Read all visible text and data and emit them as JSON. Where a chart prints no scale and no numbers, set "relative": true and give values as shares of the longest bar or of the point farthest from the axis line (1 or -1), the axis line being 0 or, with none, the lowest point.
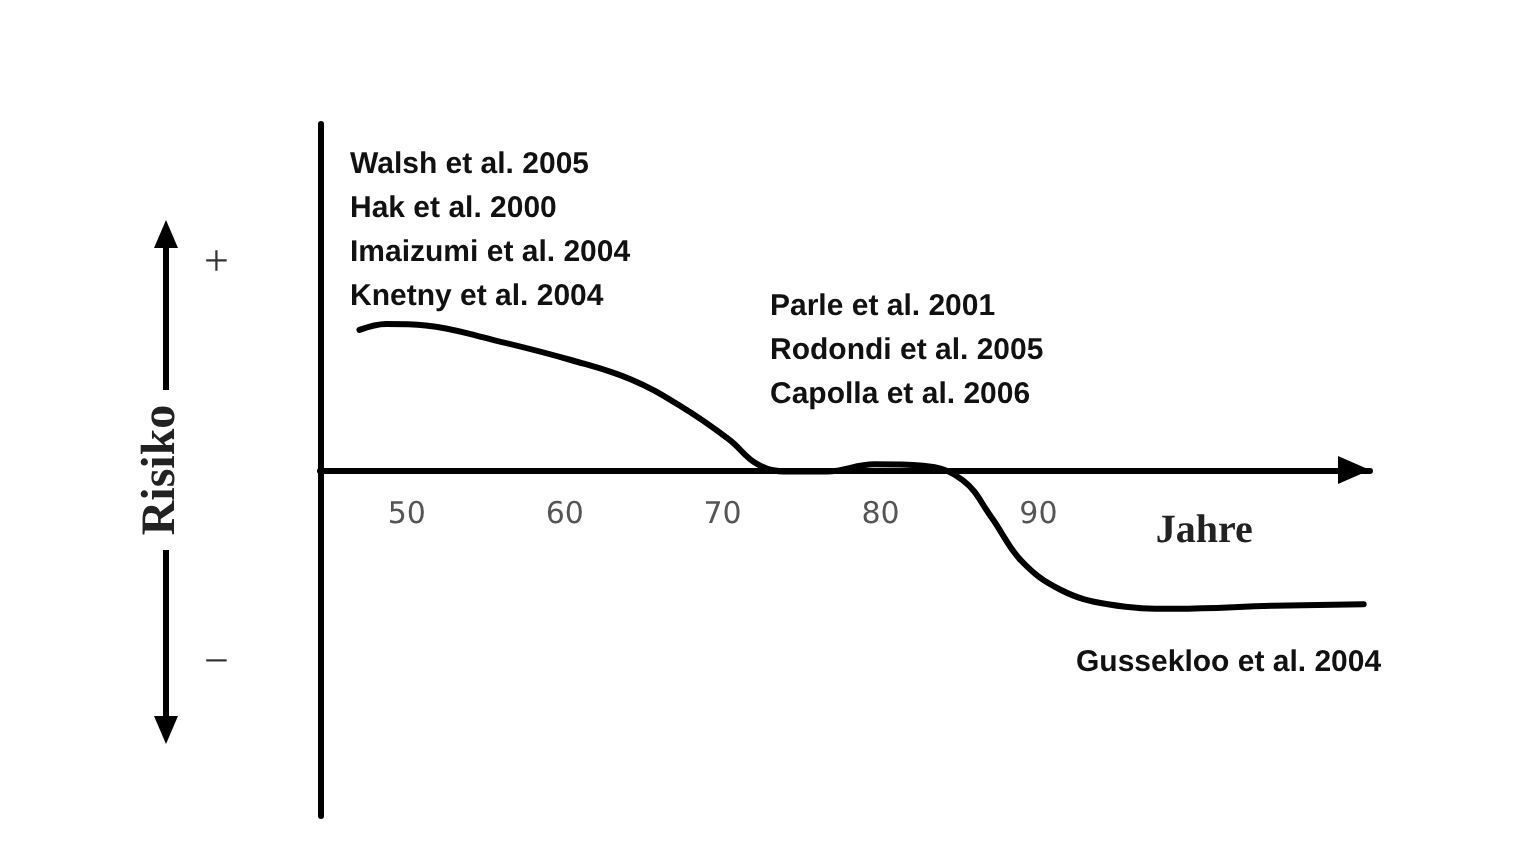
{
  "chart_data": {
    "type": "line",
    "relative": true,
    "ylabel": "Risiko",
    "xlabel": "Jahre",
    "xlim": [
      44.5,
      111
    ],
    "xticks": [
      50,
      60,
      70,
      80,
      90
    ],
    "x": [
      47,
      48.7,
      51.2,
      55.5,
      60.5,
      64.2,
      67.3,
      70.4,
      72.2,
      74.1,
      76.6,
      79.6,
      82.7,
      85.2,
      87,
      88.9,
      91.4,
      94.4,
      98.7,
      104.9,
      110.6
    ],
    "series": [
      {
        "color": "#000000",
        "values": [
          0.96,
          1,
          0.99,
          0.89,
          0.75,
          0.62,
          0.44,
          0.21,
          0.04,
          -0.01,
          -0.01,
          0.04,
          0.03,
          -0.07,
          -0.32,
          -0.62,
          -0.82,
          -0.92,
          -0.95,
          -0.93,
          -0.92
        ]
      }
    ],
    "annotations": [
      "+",
      "−",
      "Walsh et al. 2005",
      "Hak et al. 2000",
      "Imaizumi et al. 2004",
      "Knetny et al. 2004",
      "Parle et al. 2001",
      "Rodondi et al. 2005",
      "Capolla et al. 2006",
      "Gussekloo et al. 2004"
    ]
  }
}
